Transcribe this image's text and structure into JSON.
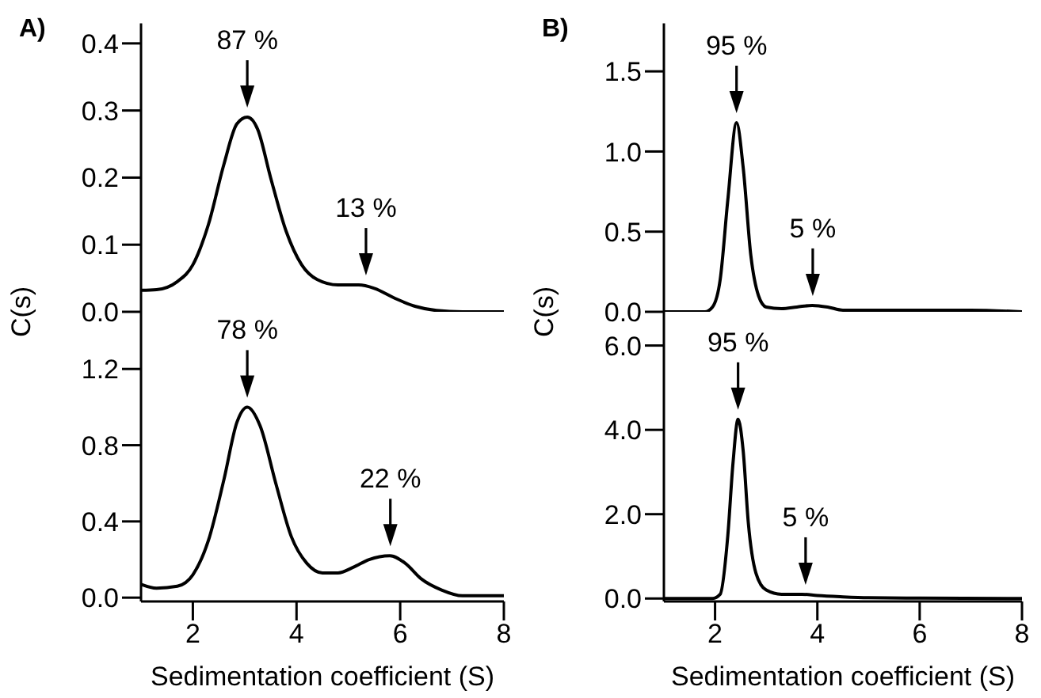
{
  "chart_data": [
    {
      "type": "line",
      "title": "A)",
      "ylabel": "C(s)",
      "color": "#000000",
      "tick_labels": "y",
      "xlim": [
        1,
        8
      ],
      "xticks": [
        2,
        4,
        6,
        8
      ],
      "ylim": [
        0,
        0.43
      ],
      "yticks": [
        {
          "value": 0,
          "label": "0.0"
        },
        0.1,
        0.2,
        0.3,
        0.4
      ],
      "x": [
        1,
        1.3,
        1.7,
        2.0,
        2.3,
        2.6,
        2.85,
        3.05,
        3.25,
        3.5,
        3.8,
        4.1,
        4.4,
        4.8,
        5.2,
        5.5,
        5.9,
        6.3,
        6.7,
        7.2,
        8
      ],
      "values": [
        0.032,
        0.033,
        0.045,
        0.07,
        0.13,
        0.22,
        0.28,
        0.29,
        0.272,
        0.2,
        0.12,
        0.07,
        0.048,
        0.04,
        0.04,
        0.035,
        0.02,
        0.008,
        0.002,
        0,
        0
      ],
      "annotations": [
        {
          "text": "87 %",
          "x": 3.05,
          "y": 0.29
        },
        {
          "text": "13 %",
          "x": 5.34,
          "y": 0.04
        }
      ]
    },
    {
      "type": "line",
      "xlabel": "Sedimentation coefficient (S)",
      "color": "#000000",
      "xlim": [
        1,
        8
      ],
      "xticks": [
        2,
        4,
        6,
        8
      ],
      "ylim": [
        -0.02,
        1.5
      ],
      "yticks": [
        {
          "value": 0,
          "label": "0.0"
        },
        0.4,
        0.8,
        1.2
      ],
      "x": [
        1,
        1.3,
        1.7,
        2.0,
        2.3,
        2.6,
        2.85,
        3.05,
        3.3,
        3.6,
        3.9,
        4.2,
        4.5,
        4.8,
        5.1,
        5.4,
        5.8,
        6.1,
        6.4,
        6.8,
        7.2,
        7.6,
        8
      ],
      "values": [
        0.07,
        0.05,
        0.06,
        0.12,
        0.3,
        0.62,
        0.92,
        1.0,
        0.9,
        0.6,
        0.32,
        0.18,
        0.13,
        0.13,
        0.16,
        0.2,
        0.22,
        0.18,
        0.1,
        0.04,
        0.01,
        0.01,
        0.01
      ],
      "annotations": [
        {
          "text": "78 %",
          "x": 3.05,
          "y": 1.0
        },
        {
          "text": "22 %",
          "x": 5.81,
          "y": 0.22
        }
      ]
    },
    {
      "type": "line",
      "title": "B)",
      "ylabel": "C(s)",
      "color": "#000000",
      "tick_labels": "y",
      "xlim": [
        1,
        8
      ],
      "xticks": [
        2,
        4,
        6,
        8
      ],
      "ylim": [
        0,
        1.8
      ],
      "yticks": [
        {
          "value": 0,
          "label": "0.0"
        },
        0.5,
        {
          "value": 1,
          "label": "1.0"
        },
        1.5
      ],
      "x": [
        1,
        1.8,
        1.95,
        2.1,
        2.25,
        2.42,
        2.55,
        2.7,
        2.85,
        3.0,
        3.3,
        3.6,
        3.9,
        4.2,
        4.5,
        5,
        6,
        7,
        8
      ],
      "values": [
        0,
        0,
        0.03,
        0.2,
        0.7,
        1.18,
        0.9,
        0.35,
        0.1,
        0.03,
        0.02,
        0.03,
        0.04,
        0.03,
        0.01,
        0.01,
        0.01,
        0.01,
        0
      ],
      "annotations": [
        {
          "text": "95 %",
          "x": 2.42,
          "y": 1.18
        },
        {
          "text": "5 %",
          "x": 3.91,
          "y": 0.04
        }
      ]
    },
    {
      "type": "line",
      "xlabel": "Sedimentation coefficient (S)",
      "color": "#000000",
      "xlim": [
        1,
        8
      ],
      "xticks": [
        2,
        4,
        6,
        8
      ],
      "ylim": [
        -0.07,
        6.8
      ],
      "yticks": [
        {
          "value": 0,
          "label": "0.0"
        },
        {
          "value": 2,
          "label": "2.0"
        },
        {
          "value": 4,
          "label": "4.0"
        },
        {
          "value": 6,
          "label": "6.0"
        }
      ],
      "x": [
        1,
        1.95,
        2.1,
        2.25,
        2.35,
        2.45,
        2.55,
        2.65,
        2.8,
        3.0,
        3.3,
        3.7,
        4.0,
        4.5,
        5,
        6,
        8
      ],
      "values": [
        0,
        0,
        0.1,
        1.5,
        3.2,
        4.25,
        3.5,
        1.8,
        0.6,
        0.2,
        0.1,
        0.1,
        0.07,
        0.04,
        0.02,
        0.01,
        0
      ],
      "annotations": [
        {
          "text": "95 %",
          "x": 2.45,
          "y": 4.25
        },
        {
          "text": "5 %",
          "x": 3.77,
          "y": 0.1
        }
      ]
    }
  ]
}
